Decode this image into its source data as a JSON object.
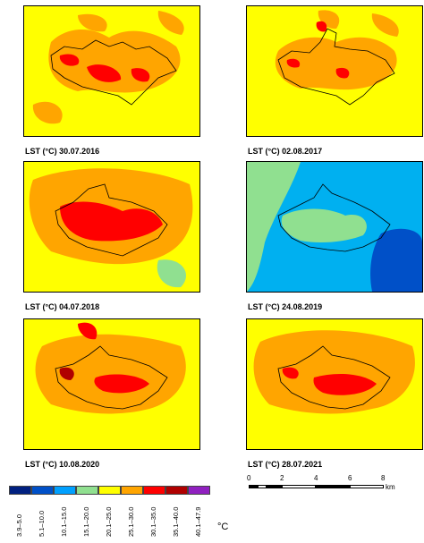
{
  "panels": [
    {
      "caption": "LST (°C) 30.07.2016",
      "base_color": "#ffff00"
    },
    {
      "caption": "LST (°C) 02.08.2017",
      "base_color": "#ffff00"
    },
    {
      "caption": "LST (°C) 04.07.2018",
      "base_color": "#ffff00"
    },
    {
      "caption": "LST (°C) 24.08.2019",
      "base_color": "#00b0f0"
    },
    {
      "caption": "LST (°C) 10.08.2020",
      "base_color": "#ffff00"
    },
    {
      "caption": "LST (°C) 28.07.2021",
      "base_color": "#ffff00"
    }
  ],
  "legend": {
    "unit": "°C",
    "classes": [
      {
        "label": "3.9–5.0",
        "color": "#002080"
      },
      {
        "label": "5.1–10.0",
        "color": "#0050c8"
      },
      {
        "label": "10.1–15.0",
        "color": "#00a0ff"
      },
      {
        "label": "15.1–20.0",
        "color": "#90e090"
      },
      {
        "label": "20.1–25.0",
        "color": "#ffff00"
      },
      {
        "label": "25.1–30.0",
        "color": "#ffa500"
      },
      {
        "label": "30.1–35.0",
        "color": "#ff0000"
      },
      {
        "label": "35.1–40.0",
        "color": "#b00000"
      },
      {
        "label": "40.1–47.9",
        "color": "#9020c0"
      }
    ]
  },
  "scalebar": {
    "ticks": [
      "0",
      "2",
      "4",
      "6",
      "8"
    ],
    "unit": "km"
  }
}
